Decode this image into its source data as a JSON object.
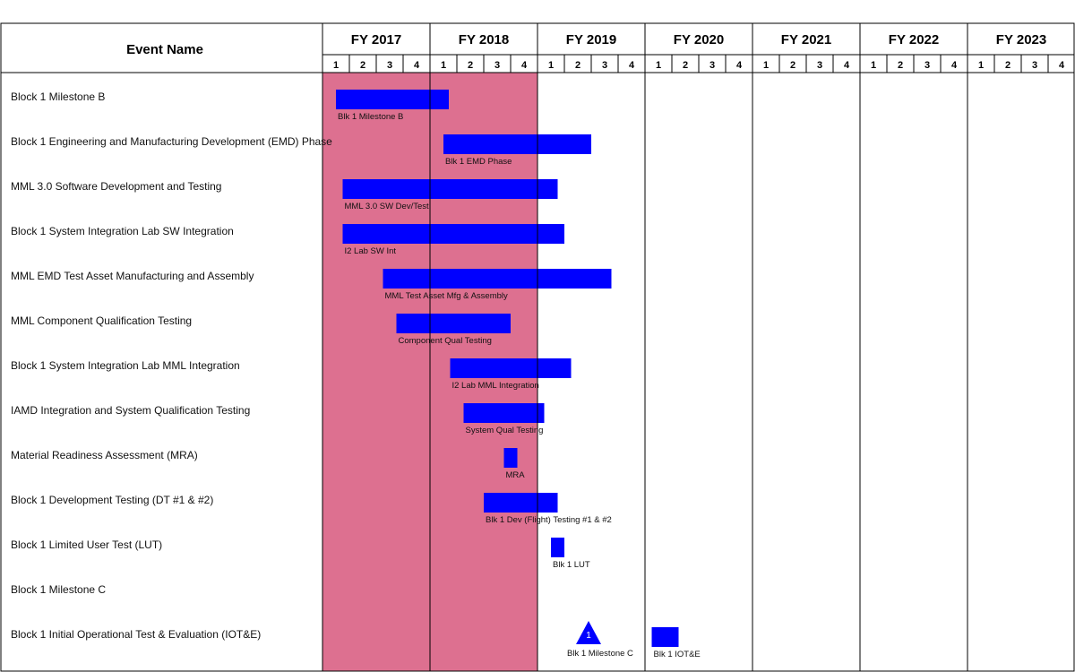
{
  "chart_data": {
    "type": "gantt",
    "header": "Event Name",
    "fiscal_years": [
      "FY 2017",
      "FY 2018",
      "FY 2019",
      "FY 2020",
      "FY 2021",
      "FY 2022",
      "FY 2023"
    ],
    "quarter_labels": [
      "1",
      "2",
      "3",
      "4"
    ],
    "highlight_quarters": [
      0,
      8
    ],
    "colors": {
      "bar": "#0000ff",
      "highlight": "#dd7090",
      "grid": "#000000"
    },
    "events": [
      {
        "name": "Block 1 Milestone B",
        "bar_label": "Blk 1 Milestone B",
        "start": 0.5,
        "end": 4.7,
        "kind": "bar"
      },
      {
        "name": "Block 1 Engineering and Manufacturing Development (EMD) Phase",
        "bar_label": "Blk 1 EMD Phase",
        "start": 4.5,
        "end": 10.0,
        "kind": "bar"
      },
      {
        "name": "MML 3.0 Software Development and Testing",
        "bar_label": "MML 3.0 SW Dev/Test",
        "start": 0.75,
        "end": 8.75,
        "kind": "bar"
      },
      {
        "name": "Block 1 System Integration Lab SW Integration",
        "bar_label": "I2 Lab SW Int",
        "start": 0.75,
        "end": 9.0,
        "kind": "bar"
      },
      {
        "name": "MML EMD Test Asset Manufacturing and Assembly",
        "bar_label": "MML Test Asset Mfg & Assembly",
        "start": 2.25,
        "end": 10.75,
        "kind": "bar"
      },
      {
        "name": "MML Component Qualification Testing",
        "bar_label": "Component Qual Testing",
        "start": 2.75,
        "end": 7.0,
        "kind": "bar"
      },
      {
        "name": "Block 1 System Integration Lab MML Integration",
        "bar_label": "I2 Lab MML Integration",
        "start": 4.75,
        "end": 9.25,
        "kind": "bar"
      },
      {
        "name": "IAMD Integration and System Qualification Testing",
        "bar_label": "System Qual Testing",
        "start": 5.25,
        "end": 8.25,
        "kind": "bar"
      },
      {
        "name": "Material Readiness Assessment (MRA)",
        "bar_label": "MRA",
        "start": 6.75,
        "end": 7.25,
        "kind": "bar"
      },
      {
        "name": "Block 1 Development Testing (DT #1 & #2)",
        "bar_label": "Blk 1 Dev (Flight) Testing #1 & #2",
        "start": 6.0,
        "end": 8.75,
        "kind": "bar"
      },
      {
        "name": "Block 1 Limited User Test (LUT)",
        "bar_label": "Blk 1 LUT",
        "start": 8.5,
        "end": 9.0,
        "kind": "bar"
      },
      {
        "name": "Block 1 Milestone C",
        "bar_label": "Blk 1 Milestone C",
        "start": 9.9,
        "end": 9.9,
        "kind": "milestone",
        "marker_text": "1"
      },
      {
        "name": "Block 1 Initial Operational Test & Evaluation (IOT&E)",
        "bar_label": "Blk 1 IOT&E",
        "start": 12.25,
        "end": 13.25,
        "kind": "bar"
      }
    ]
  }
}
